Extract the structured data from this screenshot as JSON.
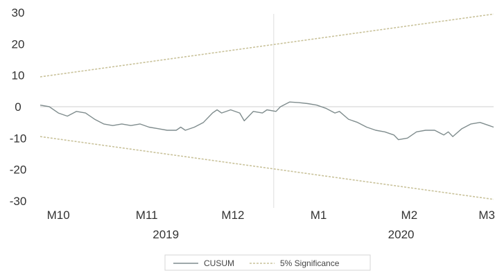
{
  "chart_data": {
    "type": "line",
    "ylim": [
      -30,
      30
    ],
    "yticks": [
      30,
      20,
      10,
      0,
      -10,
      -20,
      -30
    ],
    "xlim": [
      0,
      1
    ],
    "month_ticks": [
      {
        "label": "M10",
        "x": 0.04
      },
      {
        "label": "M11",
        "x": 0.235
      },
      {
        "label": "M12",
        "x": 0.425
      },
      {
        "label": "M1",
        "x": 0.614
      },
      {
        "label": "M2",
        "x": 0.814
      },
      {
        "label": "M3",
        "x": 0.985
      }
    ],
    "year_labels": [
      {
        "label": "2019",
        "x": 0.277
      },
      {
        "label": "2020",
        "x": 0.796
      }
    ],
    "divider_x": 0.515,
    "series": [
      {
        "name": "CUSUM",
        "color": "#7f8c8d",
        "points": [
          [
            0.0,
            0.5
          ],
          [
            0.02,
            0
          ],
          [
            0.04,
            -2
          ],
          [
            0.06,
            -3
          ],
          [
            0.08,
            -1.5
          ],
          [
            0.1,
            -2
          ],
          [
            0.12,
            -4
          ],
          [
            0.14,
            -5.5
          ],
          [
            0.16,
            -6
          ],
          [
            0.18,
            -5.5
          ],
          [
            0.2,
            -6
          ],
          [
            0.22,
            -5.5
          ],
          [
            0.24,
            -6.5
          ],
          [
            0.26,
            -7
          ],
          [
            0.28,
            -7.5
          ],
          [
            0.3,
            -7.5
          ],
          [
            0.31,
            -6.5
          ],
          [
            0.32,
            -7.5
          ],
          [
            0.34,
            -6.5
          ],
          [
            0.36,
            -5
          ],
          [
            0.38,
            -2
          ],
          [
            0.39,
            -1
          ],
          [
            0.4,
            -2
          ],
          [
            0.42,
            -1
          ],
          [
            0.44,
            -2
          ],
          [
            0.45,
            -4.5
          ],
          [
            0.46,
            -3
          ],
          [
            0.47,
            -1.5
          ],
          [
            0.49,
            -2
          ],
          [
            0.5,
            -1
          ],
          [
            0.52,
            -1.5
          ],
          [
            0.53,
            0
          ],
          [
            0.55,
            1.5
          ],
          [
            0.57,
            1.3
          ],
          [
            0.59,
            1
          ],
          [
            0.61,
            0.5
          ],
          [
            0.63,
            -0.5
          ],
          [
            0.65,
            -2
          ],
          [
            0.66,
            -1.5
          ],
          [
            0.68,
            -4
          ],
          [
            0.7,
            -5
          ],
          [
            0.72,
            -6.5
          ],
          [
            0.74,
            -7.5
          ],
          [
            0.76,
            -8
          ],
          [
            0.78,
            -9
          ],
          [
            0.79,
            -10.5
          ],
          [
            0.81,
            -10
          ],
          [
            0.83,
            -8
          ],
          [
            0.85,
            -7.5
          ],
          [
            0.87,
            -7.5
          ],
          [
            0.89,
            -9
          ],
          [
            0.9,
            -8
          ],
          [
            0.91,
            -9.5
          ],
          [
            0.93,
            -7
          ],
          [
            0.95,
            -5.5
          ],
          [
            0.97,
            -5
          ],
          [
            0.99,
            -6
          ],
          [
            1.0,
            -6.5
          ]
        ]
      },
      {
        "name": "5% Significance",
        "color": "#c9c29a",
        "points": [
          [
            0.0,
            9.5
          ],
          [
            1.0,
            29.5
          ]
        ]
      },
      {
        "name": "",
        "color": "#c9c29a",
        "points": [
          [
            0.0,
            -9.5
          ],
          [
            1.0,
            -29.5
          ]
        ]
      }
    ],
    "legend": {
      "entries": [
        {
          "label": "CUSUM",
          "color": "#7f8c8d",
          "style": "solid"
        },
        {
          "label": "5% Significance",
          "color": "#c9c29a",
          "style": "dashed"
        }
      ],
      "placement": "bottom"
    },
    "grid": false
  },
  "colors": {
    "axis": "#cfcfcf",
    "text": "#333333"
  }
}
